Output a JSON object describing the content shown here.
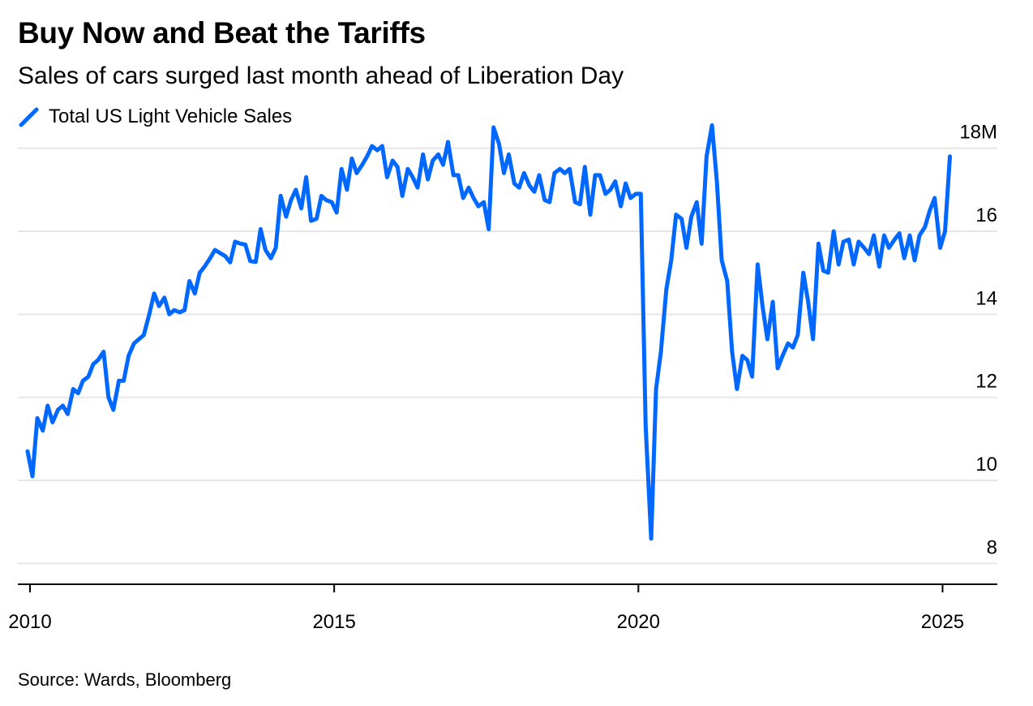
{
  "chart_data": {
    "type": "line",
    "title": "Buy Now and Beat the Tariffs",
    "subtitle": "Sales of cars surged last month ahead of Liberation Day",
    "source": "Source: Wards, Bloomberg",
    "legend_position": "top-left",
    "grid": true,
    "y_unit": "M",
    "ylim": [
      7.5,
      18.5
    ],
    "xlim": [
      2009.8,
      2025.9
    ],
    "yticks": [
      {
        "value": 8,
        "label": "8"
      },
      {
        "value": 10,
        "label": "10"
      },
      {
        "value": 12,
        "label": "12"
      },
      {
        "value": 14,
        "label": "14"
      },
      {
        "value": 16,
        "label": "16"
      },
      {
        "value": 18,
        "label": "18M"
      }
    ],
    "xticks": [
      {
        "value": 2010,
        "label": "2010"
      },
      {
        "value": 2015,
        "label": "2015"
      },
      {
        "value": 2020,
        "label": "2020"
      },
      {
        "value": 2025,
        "label": "2025"
      }
    ],
    "series": [
      {
        "name": "Total US Light Vehicle Sales",
        "color": "#0068FF",
        "points": [
          [
            2009.96,
            10.7
          ],
          [
            2010.04,
            10.1
          ],
          [
            2010.12,
            11.5
          ],
          [
            2010.21,
            11.2
          ],
          [
            2010.29,
            11.8
          ],
          [
            2010.37,
            11.4
          ],
          [
            2010.46,
            11.7
          ],
          [
            2010.54,
            11.8
          ],
          [
            2010.62,
            11.6
          ],
          [
            2010.71,
            12.2
          ],
          [
            2010.79,
            12.1
          ],
          [
            2010.87,
            12.4
          ],
          [
            2010.96,
            12.5
          ],
          [
            2011.04,
            12.8
          ],
          [
            2011.12,
            12.9
          ],
          [
            2011.21,
            13.1
          ],
          [
            2011.29,
            12.0
          ],
          [
            2011.37,
            11.7
          ],
          [
            2011.46,
            12.4
          ],
          [
            2011.54,
            12.4
          ],
          [
            2011.62,
            13.0
          ],
          [
            2011.71,
            13.3
          ],
          [
            2011.79,
            13.4
          ],
          [
            2011.87,
            13.5
          ],
          [
            2011.96,
            14.0
          ],
          [
            2012.04,
            14.5
          ],
          [
            2012.12,
            14.2
          ],
          [
            2012.21,
            14.4
          ],
          [
            2012.29,
            14.0
          ],
          [
            2012.37,
            14.1
          ],
          [
            2012.46,
            14.05
          ],
          [
            2012.54,
            14.1
          ],
          [
            2012.62,
            14.8
          ],
          [
            2012.71,
            14.5
          ],
          [
            2012.79,
            15.0
          ],
          [
            2012.87,
            15.15
          ],
          [
            2012.96,
            15.35
          ],
          [
            2013.04,
            15.55
          ],
          [
            2013.12,
            15.48
          ],
          [
            2013.21,
            15.4
          ],
          [
            2013.29,
            15.25
          ],
          [
            2013.37,
            15.75
          ],
          [
            2013.46,
            15.7
          ],
          [
            2013.54,
            15.68
          ],
          [
            2013.62,
            15.28
          ],
          [
            2013.71,
            15.26
          ],
          [
            2013.79,
            16.05
          ],
          [
            2013.87,
            15.55
          ],
          [
            2013.96,
            15.35
          ],
          [
            2014.04,
            15.6
          ],
          [
            2014.12,
            16.85
          ],
          [
            2014.21,
            16.35
          ],
          [
            2014.29,
            16.75
          ],
          [
            2014.37,
            17.0
          ],
          [
            2014.46,
            16.55
          ],
          [
            2014.54,
            17.3
          ],
          [
            2014.62,
            16.25
          ],
          [
            2014.71,
            16.3
          ],
          [
            2014.79,
            16.85
          ],
          [
            2014.87,
            16.75
          ],
          [
            2014.96,
            16.7
          ],
          [
            2015.04,
            16.45
          ],
          [
            2015.12,
            17.5
          ],
          [
            2015.21,
            17.0
          ],
          [
            2015.29,
            17.75
          ],
          [
            2015.37,
            17.4
          ],
          [
            2015.46,
            17.6
          ],
          [
            2015.54,
            17.8
          ],
          [
            2015.62,
            18.05
          ],
          [
            2015.71,
            17.95
          ],
          [
            2015.79,
            18.05
          ],
          [
            2015.87,
            17.3
          ],
          [
            2015.96,
            17.7
          ],
          [
            2016.04,
            17.55
          ],
          [
            2016.12,
            16.85
          ],
          [
            2016.21,
            17.5
          ],
          [
            2016.29,
            17.3
          ],
          [
            2016.37,
            17.05
          ],
          [
            2016.46,
            17.85
          ],
          [
            2016.54,
            17.25
          ],
          [
            2016.62,
            17.7
          ],
          [
            2016.71,
            17.85
          ],
          [
            2016.79,
            17.6
          ],
          [
            2016.87,
            18.15
          ],
          [
            2016.96,
            17.35
          ],
          [
            2017.04,
            17.35
          ],
          [
            2017.12,
            16.8
          ],
          [
            2017.21,
            17.05
          ],
          [
            2017.29,
            16.8
          ],
          [
            2017.37,
            16.6
          ],
          [
            2017.46,
            16.7
          ],
          [
            2017.54,
            16.05
          ],
          [
            2017.62,
            18.5
          ],
          [
            2017.71,
            18.1
          ],
          [
            2017.79,
            17.4
          ],
          [
            2017.87,
            17.85
          ],
          [
            2017.96,
            17.15
          ],
          [
            2018.04,
            17.05
          ],
          [
            2018.12,
            17.4
          ],
          [
            2018.21,
            17.1
          ],
          [
            2018.29,
            16.95
          ],
          [
            2018.37,
            17.35
          ],
          [
            2018.46,
            16.75
          ],
          [
            2018.54,
            16.7
          ],
          [
            2018.62,
            17.4
          ],
          [
            2018.71,
            17.5
          ],
          [
            2018.79,
            17.4
          ],
          [
            2018.87,
            17.5
          ],
          [
            2018.96,
            16.7
          ],
          [
            2019.04,
            16.65
          ],
          [
            2019.12,
            17.55
          ],
          [
            2019.21,
            16.4
          ],
          [
            2019.29,
            17.35
          ],
          [
            2019.37,
            17.35
          ],
          [
            2019.46,
            16.9
          ],
          [
            2019.54,
            17.0
          ],
          [
            2019.62,
            17.2
          ],
          [
            2019.71,
            16.6
          ],
          [
            2019.79,
            17.15
          ],
          [
            2019.87,
            16.8
          ],
          [
            2019.96,
            16.9
          ],
          [
            2020.04,
            16.9
          ],
          [
            2020.12,
            11.3
          ],
          [
            2020.21,
            8.6
          ],
          [
            2020.29,
            12.2
          ],
          [
            2020.37,
            13.1
          ],
          [
            2020.46,
            14.6
          ],
          [
            2020.54,
            15.3
          ],
          [
            2020.62,
            16.4
          ],
          [
            2020.71,
            16.3
          ],
          [
            2020.79,
            15.6
          ],
          [
            2020.87,
            16.35
          ],
          [
            2020.96,
            16.7
          ],
          [
            2021.04,
            15.7
          ],
          [
            2021.12,
            17.8
          ],
          [
            2021.21,
            18.55
          ],
          [
            2021.29,
            17.2
          ],
          [
            2021.37,
            15.3
          ],
          [
            2021.46,
            14.8
          ],
          [
            2021.54,
            13.1
          ],
          [
            2021.62,
            12.2
          ],
          [
            2021.71,
            13.0
          ],
          [
            2021.79,
            12.9
          ],
          [
            2021.87,
            12.5
          ],
          [
            2021.96,
            15.2
          ],
          [
            2022.04,
            14.2
          ],
          [
            2022.12,
            13.4
          ],
          [
            2022.21,
            14.3
          ],
          [
            2022.29,
            12.7
          ],
          [
            2022.37,
            13.0
          ],
          [
            2022.46,
            13.3
          ],
          [
            2022.54,
            13.2
          ],
          [
            2022.62,
            13.5
          ],
          [
            2022.71,
            15.0
          ],
          [
            2022.79,
            14.3
          ],
          [
            2022.87,
            13.4
          ],
          [
            2022.96,
            15.7
          ],
          [
            2023.04,
            15.05
          ],
          [
            2023.12,
            15.0
          ],
          [
            2023.21,
            16.0
          ],
          [
            2023.29,
            15.2
          ],
          [
            2023.37,
            15.75
          ],
          [
            2023.46,
            15.8
          ],
          [
            2023.54,
            15.2
          ],
          [
            2023.62,
            15.75
          ],
          [
            2023.71,
            15.6
          ],
          [
            2023.79,
            15.45
          ],
          [
            2023.87,
            15.9
          ],
          [
            2023.96,
            15.15
          ],
          [
            2024.04,
            15.9
          ],
          [
            2024.12,
            15.6
          ],
          [
            2024.21,
            15.8
          ],
          [
            2024.29,
            15.95
          ],
          [
            2024.37,
            15.35
          ],
          [
            2024.46,
            15.9
          ],
          [
            2024.54,
            15.3
          ],
          [
            2024.62,
            15.9
          ],
          [
            2024.71,
            16.1
          ],
          [
            2024.79,
            16.5
          ],
          [
            2024.87,
            16.8
          ],
          [
            2024.96,
            15.6
          ],
          [
            2025.04,
            16.0
          ],
          [
            2025.12,
            17.8
          ]
        ]
      }
    ]
  }
}
